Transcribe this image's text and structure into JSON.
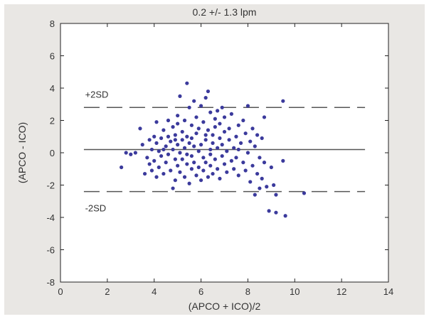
{
  "chart_data": {
    "type": "scatter",
    "title": "0.2 +/- 1.3 lpm",
    "xlabel": "(APCO + ICO)/2",
    "ylabel": "(APCO - ICO)",
    "xlim": [
      0,
      14
    ],
    "ylim": [
      -8,
      8
    ],
    "xticks": [
      0,
      2,
      4,
      6,
      8,
      10,
      12,
      14
    ],
    "yticks": [
      -8,
      -6,
      -4,
      -2,
      0,
      2,
      4,
      6,
      8
    ],
    "grid": false,
    "legend": "none",
    "colors": {
      "points": "#3b3a9c",
      "lines": "#555555",
      "background": "#e9e7e4",
      "plot_bg": "#ffffff"
    },
    "reference_lines": [
      {
        "label": "+2SD",
        "y": 2.8,
        "style": "dashed"
      },
      {
        "label": "",
        "y": 0.2,
        "style": "solid"
      },
      {
        "label": "-2SD",
        "y": -2.4,
        "style": "dashed"
      }
    ],
    "series": [
      {
        "points": [
          [
            2.6,
            -0.9
          ],
          [
            2.8,
            0.0
          ],
          [
            3.0,
            -0.1
          ],
          [
            3.2,
            0.0
          ],
          [
            3.4,
            1.5
          ],
          [
            3.5,
            0.5
          ],
          [
            3.6,
            -1.3
          ],
          [
            3.7,
            -0.3
          ],
          [
            3.8,
            0.8
          ],
          [
            3.8,
            -0.7
          ],
          [
            3.9,
            0.2
          ],
          [
            3.9,
            -1.1
          ],
          [
            4.0,
            1.0
          ],
          [
            4.0,
            -0.5
          ],
          [
            4.1,
            0.6
          ],
          [
            4.1,
            -1.5
          ],
          [
            4.1,
            1.9
          ],
          [
            4.2,
            0.1
          ],
          [
            4.2,
            -0.9
          ],
          [
            4.3,
            0.9
          ],
          [
            4.3,
            -0.2
          ],
          [
            4.4,
            1.4
          ],
          [
            4.4,
            -1.3
          ],
          [
            4.5,
            0.4
          ],
          [
            4.5,
            -0.6
          ],
          [
            4.6,
            2.0
          ],
          [
            4.6,
            1.0
          ],
          [
            4.6,
            -0.1
          ],
          [
            4.7,
            -1.1
          ],
          [
            4.7,
            0.7
          ],
          [
            4.8,
            -2.2
          ],
          [
            4.8,
            1.6
          ],
          [
            4.8,
            0.2
          ],
          [
            4.9,
            -0.4
          ],
          [
            4.9,
            1.1
          ],
          [
            4.9,
            -1.7
          ],
          [
            5.0,
            0.5
          ],
          [
            5.0,
            -0.8
          ],
          [
            5.0,
            2.3
          ],
          [
            5.1,
            3.5
          ],
          [
            5.1,
            0.0
          ],
          [
            5.1,
            -1.2
          ],
          [
            5.2,
            1.3
          ],
          [
            5.2,
            -0.4
          ],
          [
            5.2,
            0.8
          ],
          [
            5.3,
            -1.5
          ],
          [
            5.3,
            2.0
          ],
          [
            5.3,
            0.3
          ],
          [
            5.4,
            4.3
          ],
          [
            5.4,
            -0.7
          ],
          [
            5.4,
            1.0
          ],
          [
            5.5,
            -1.9
          ],
          [
            5.5,
            0.6
          ],
          [
            5.5,
            2.8
          ],
          [
            5.6,
            -0.2
          ],
          [
            5.6,
            1.7
          ],
          [
            5.6,
            -1.0
          ],
          [
            5.7,
            0.4
          ],
          [
            5.7,
            3.2
          ],
          [
            5.7,
            -0.6
          ],
          [
            5.8,
            1.2
          ],
          [
            5.8,
            -1.4
          ],
          [
            5.8,
            2.2
          ],
          [
            5.9,
            0.1
          ],
          [
            5.9,
            -0.9
          ],
          [
            5.9,
            1.5
          ],
          [
            6.0,
            2.9
          ],
          [
            6.0,
            -1.7
          ],
          [
            6.0,
            0.5
          ],
          [
            6.1,
            -0.3
          ],
          [
            6.1,
            1.9
          ],
          [
            6.1,
            -1.1
          ],
          [
            6.2,
            3.4
          ],
          [
            6.2,
            0.8
          ],
          [
            6.2,
            -0.6
          ],
          [
            6.3,
            3.8
          ],
          [
            6.3,
            1.4
          ],
          [
            6.3,
            -1.5
          ],
          [
            6.4,
            0.2
          ],
          [
            6.4,
            2.5
          ],
          [
            6.4,
            -0.8
          ],
          [
            6.5,
            1.1
          ],
          [
            6.5,
            -1.3
          ],
          [
            6.5,
            0.6
          ],
          [
            6.6,
            2.1
          ],
          [
            6.6,
            -0.4
          ],
          [
            6.6,
            1.6
          ],
          [
            6.7,
            -1.0
          ],
          [
            6.7,
            0.3
          ],
          [
            6.7,
            2.6
          ],
          [
            6.8,
            -1.6
          ],
          [
            6.8,
            0.9
          ],
          [
            6.8,
            1.8
          ],
          [
            6.9,
            -0.2
          ],
          [
            6.9,
            0.5
          ],
          [
            7.0,
            1.3
          ],
          [
            7.0,
            -0.7
          ],
          [
            7.0,
            2.2
          ],
          [
            7.1,
            0.1
          ],
          [
            7.1,
            -1.2
          ],
          [
            7.2,
            0.8
          ],
          [
            7.2,
            1.5
          ],
          [
            7.3,
            -0.5
          ],
          [
            7.3,
            2.4
          ],
          [
            7.4,
            0.3
          ],
          [
            7.4,
            -1.0
          ],
          [
            7.5,
            1.0
          ],
          [
            7.5,
            -0.3
          ],
          [
            7.6,
            1.7
          ],
          [
            7.6,
            -1.4
          ],
          [
            7.7,
            0.6
          ],
          [
            7.8,
            2.0
          ],
          [
            7.8,
            -0.6
          ],
          [
            7.9,
            1.2
          ],
          [
            7.9,
            -1.1
          ],
          [
            8.0,
            0.0
          ],
          [
            8.0,
            2.9
          ],
          [
            8.1,
            -1.8
          ],
          [
            8.1,
            0.7
          ],
          [
            8.2,
            1.5
          ],
          [
            8.2,
            -0.8
          ],
          [
            8.3,
            -2.6
          ],
          [
            8.3,
            0.4
          ],
          [
            8.4,
            -1.3
          ],
          [
            8.4,
            1.1
          ],
          [
            8.5,
            -0.3
          ],
          [
            8.5,
            -2.2
          ],
          [
            8.6,
            0.9
          ],
          [
            8.6,
            -1.6
          ],
          [
            8.7,
            2.2
          ],
          [
            8.7,
            -0.6
          ],
          [
            8.8,
            -2.1
          ],
          [
            8.9,
            -3.6
          ],
          [
            9.0,
            -0.9
          ],
          [
            9.1,
            -2.0
          ],
          [
            9.2,
            -3.7
          ],
          [
            9.2,
            -2.6
          ],
          [
            9.5,
            3.2
          ],
          [
            9.5,
            -0.5
          ],
          [
            9.6,
            -3.9
          ],
          [
            10.4,
            -2.5
          ],
          [
            6.4,
            -0.1
          ],
          [
            5.0,
            1.8
          ],
          [
            4.4,
            0.2
          ],
          [
            6.9,
            2.8
          ],
          [
            5.6,
            0.9
          ],
          [
            7.6,
            0.2
          ],
          [
            6.2,
            1.1
          ],
          [
            4.9,
            0.8
          ],
          [
            5.4,
            -0.1
          ]
        ]
      }
    ]
  }
}
